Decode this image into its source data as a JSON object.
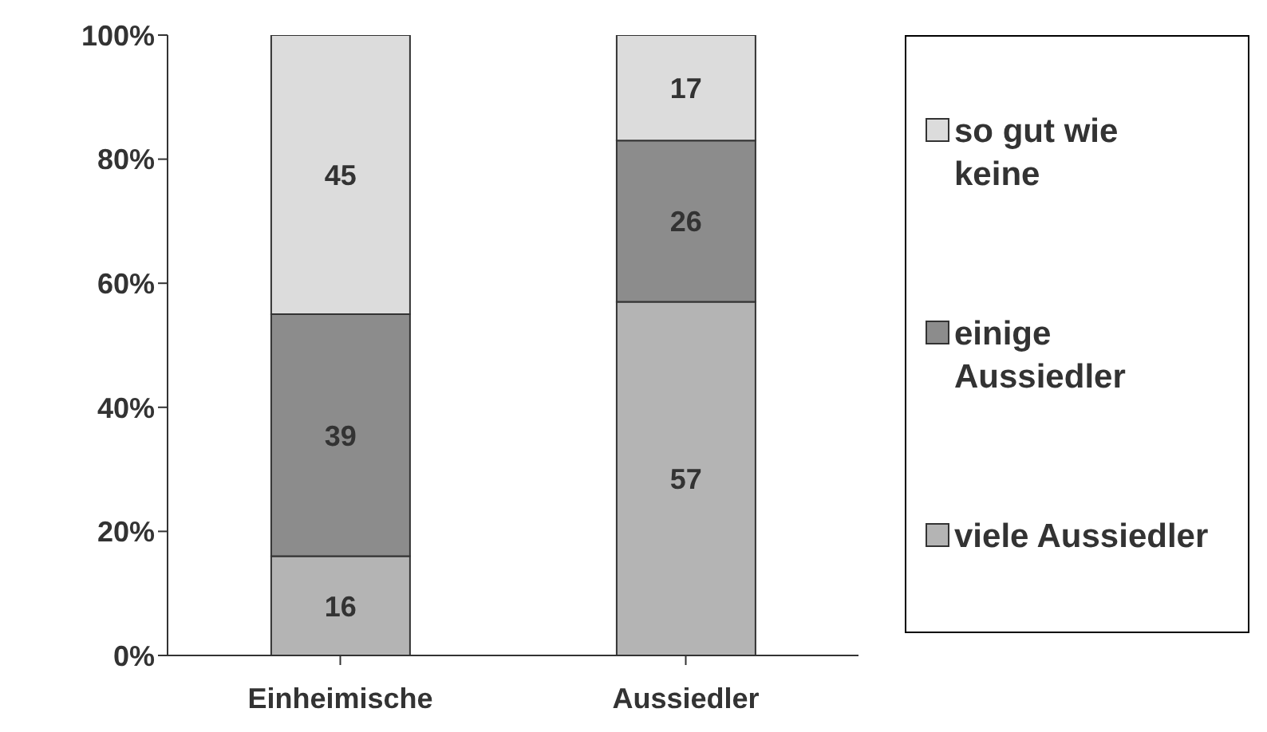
{
  "chart_data": {
    "type": "bar",
    "stacked": true,
    "categories": [
      "Einheimische",
      "Aussiedler"
    ],
    "series": [
      {
        "name": "viele Aussiedler",
        "color": "#b4b4b4",
        "values": [
          16,
          57
        ]
      },
      {
        "name": "einige Aussiedler",
        "color": "#8c8c8c",
        "values": [
          39,
          26
        ]
      },
      {
        "name": "so gut wie keine",
        "color": "#dcdcdc",
        "values": [
          45,
          17
        ]
      }
    ],
    "ylim": [
      0,
      100
    ],
    "yticks": [
      {
        "value": 0,
        "label": "0%"
      },
      {
        "value": 20,
        "label": "20%"
      },
      {
        "value": 40,
        "label": "40%"
      },
      {
        "value": 60,
        "label": "60%"
      },
      {
        "value": 80,
        "label": "80%"
      },
      {
        "value": 100,
        "label": "100%"
      }
    ],
    "data_labels": true,
    "legend": "right"
  }
}
